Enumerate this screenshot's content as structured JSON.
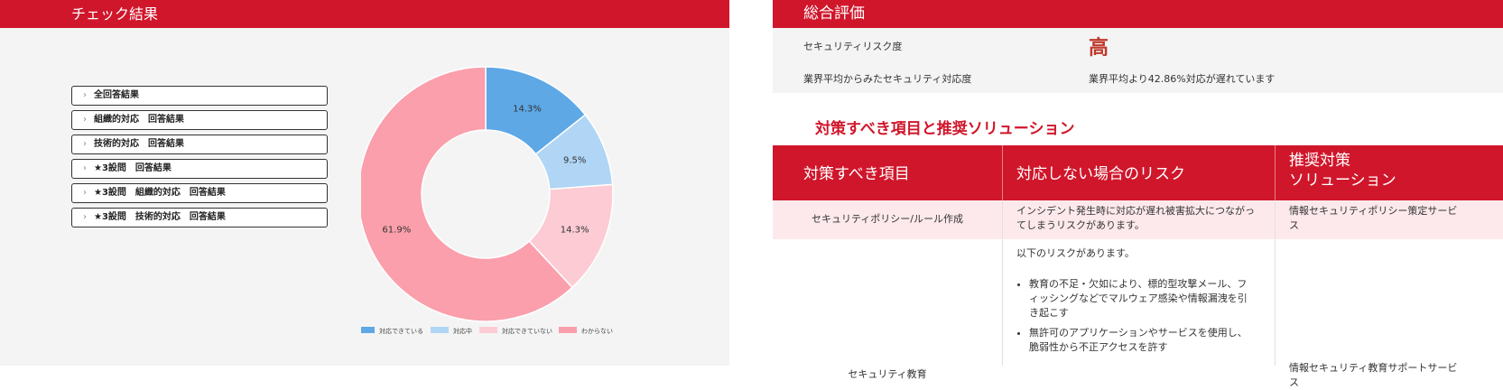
{
  "left": {
    "title": "チェック結果",
    "accordion": [
      "全回答結果",
      "組織的対応　回答結果",
      "技術的対応　回答結果",
      "★3設問　回答結果",
      "★3設問　組織的対応　回答結果",
      "★3設問　技術的対応　回答結果"
    ]
  },
  "chart_data": {
    "type": "pie",
    "donut": true,
    "series": [
      {
        "name": "対応できている",
        "value": 14.3,
        "label": "14.3%",
        "color": "#5ea8e6"
      },
      {
        "name": "対応中",
        "value": 9.5,
        "label": "9.5%",
        "color": "#b0d5f5"
      },
      {
        "name": "対応できていない",
        "value": 14.3,
        "label": "14.3%",
        "color": "#fccbd3"
      },
      {
        "name": "わからない",
        "value": 61.9,
        "label": "61.9%",
        "color": "#fa9fab"
      }
    ],
    "legend_position": "bottom"
  },
  "right": {
    "title": "総合評価",
    "risk_label": "セキュリティリスク度",
    "risk_value": "高",
    "industry_label": "業界平均からみたセキュリティ対応度",
    "industry_value": "業界平均より42.86%対応が遅れています",
    "section_title": "対策すべき項目と推奨ソリューション",
    "table": {
      "headers": [
        "対策すべき項目",
        "対応しない場合のリスク",
        "推奨対策",
        "ソリューション"
      ],
      "rows": [
        {
          "item": "セキュリティポリシー/ルール作成",
          "risk_line1": "インシデント発生時に対応が遅れ被害拡大につながっ",
          "risk_line2": "てしまうリスクがあります。",
          "solution_line1": "情報セキュリティポリシー策定サービ",
          "solution_line2": "ス"
        },
        {
          "item": "セキュリティ教育",
          "risk_intro": "以下のリスクがあります。",
          "bullet1_l1": "教育の不足・欠如により、標的型攻撃メール、フ",
          "bullet1_l2": "ィッシングなどでマルウェア感染や情報漏洩を引",
          "bullet1_l3": "き起こす",
          "bullet2_l1": "無許可のアプリケーションやサービスを使用し、",
          "bullet2_l2": "脆弱性から不正アクセスを許す",
          "solution_line1": "情報セキュリティ教育サポートサービ",
          "solution_line2": "ス"
        }
      ]
    }
  }
}
